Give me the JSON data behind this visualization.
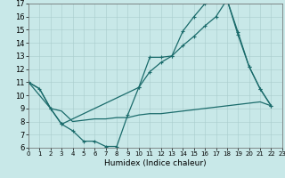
{
  "background_color": "#c8e8e8",
  "grid_color": "#a8cccc",
  "line_color": "#1a6b6b",
  "xlabel": "Humidex (Indice chaleur)",
  "xlim": [
    0,
    23
  ],
  "ylim": [
    6,
    17
  ],
  "yticks": [
    6,
    7,
    8,
    9,
    10,
    11,
    12,
    13,
    14,
    15,
    16,
    17
  ],
  "xticks": [
    0,
    1,
    2,
    3,
    4,
    5,
    6,
    7,
    8,
    9,
    10,
    11,
    12,
    13,
    14,
    15,
    16,
    17,
    18,
    19,
    20,
    21,
    22,
    23
  ],
  "line1_x": [
    0,
    1,
    2,
    3,
    4,
    5,
    6,
    7,
    8,
    9,
    10,
    11,
    12,
    13,
    14,
    15,
    16,
    17,
    18,
    19,
    20,
    21,
    22
  ],
  "line1_y": [
    11.0,
    10.5,
    9.0,
    7.8,
    7.3,
    6.5,
    6.5,
    6.1,
    6.1,
    8.5,
    10.6,
    12.9,
    12.9,
    13.0,
    14.9,
    16.0,
    17.0,
    17.3,
    17.3,
    14.6,
    12.2,
    10.5,
    9.2
  ],
  "line2_x": [
    0,
    2,
    3,
    10,
    11,
    12,
    13,
    14,
    15,
    16,
    17,
    18,
    19,
    20,
    21,
    22
  ],
  "line2_y": [
    11.0,
    9.0,
    7.8,
    10.6,
    11.8,
    12.5,
    13.0,
    13.8,
    14.5,
    15.3,
    16.0,
    17.3,
    14.8,
    12.2,
    10.5,
    9.2
  ],
  "line3_x": [
    0,
    1,
    2,
    3,
    4,
    5,
    6,
    7,
    8,
    9,
    10,
    11,
    12,
    13,
    14,
    15,
    16,
    17,
    18,
    19,
    20,
    21,
    22
  ],
  "line3_y": [
    11.0,
    10.5,
    9.0,
    8.8,
    8.0,
    8.1,
    8.2,
    8.2,
    8.3,
    8.3,
    8.5,
    8.6,
    8.6,
    8.7,
    8.8,
    8.9,
    9.0,
    9.1,
    9.2,
    9.3,
    9.4,
    9.5,
    9.2
  ],
  "line1_has_marker": true,
  "line2_has_marker": true,
  "line3_has_marker": false,
  "marker_size": 3.5,
  "linewidth": 0.9,
  "tick_fontsize_x": 5.0,
  "tick_fontsize_y": 6.0,
  "xlabel_fontsize": 6.5
}
